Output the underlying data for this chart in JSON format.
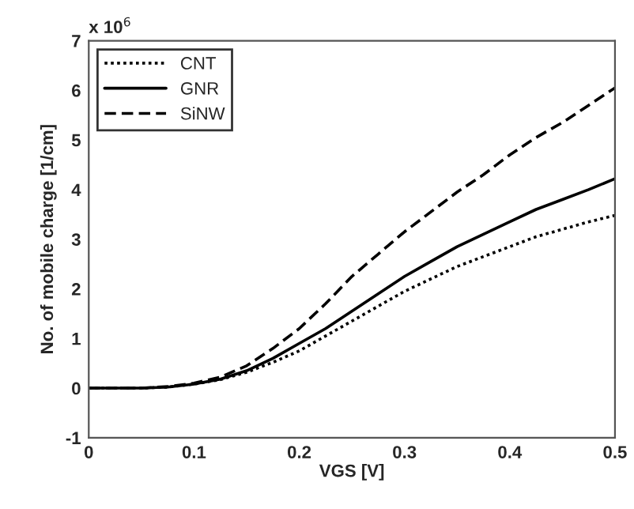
{
  "chart_data": {
    "type": "line",
    "xlabel": "VGS [V]",
    "ylabel": "No. of mobile charge [1/cm]",
    "annotations": [
      "x 10$^{6}$"
    ],
    "x": [
      0,
      0.05,
      0.075,
      0.1,
      0.125,
      0.15,
      0.175,
      0.2,
      0.225,
      0.25,
      0.275,
      0.3,
      0.325,
      0.35,
      0.375,
      0.4,
      0.425,
      0.45,
      0.475,
      0.5
    ],
    "series": [
      {
        "name": "CNT",
        "color": "#000000",
        "line_style": "dotted",
        "values": [
          0,
          0,
          0.02,
          0.08,
          0.17,
          0.32,
          0.52,
          0.75,
          1.05,
          1.35,
          1.65,
          1.95,
          2.2,
          2.45,
          2.65,
          2.85,
          3.05,
          3.2,
          3.35,
          3.48
        ]
      },
      {
        "name": "GNR",
        "color": "#000000",
        "line_style": "solid",
        "values": [
          0,
          0,
          0.02,
          0.08,
          0.18,
          0.35,
          0.6,
          0.9,
          1.2,
          1.55,
          1.9,
          2.25,
          2.55,
          2.85,
          3.1,
          3.35,
          3.6,
          3.8,
          4.0,
          4.22
        ]
      },
      {
        "name": "SiNW",
        "color": "#000000",
        "line_style": "dashed",
        "values": [
          0,
          0,
          0.03,
          0.1,
          0.22,
          0.45,
          0.8,
          1.2,
          1.7,
          2.25,
          2.7,
          3.15,
          3.55,
          3.95,
          4.3,
          4.7,
          5.05,
          5.35,
          5.7,
          6.05
        ]
      }
    ],
    "xlim": [
      0,
      0.5
    ],
    "xticks": [
      0,
      0.1,
      0.2,
      0.3,
      0.4,
      0.5
    ],
    "ylim": [
      -1,
      7
    ],
    "yticks": [
      -1,
      0,
      1,
      2,
      3,
      4,
      5,
      6,
      7
    ],
    "grid": false,
    "legend": "top left"
  }
}
